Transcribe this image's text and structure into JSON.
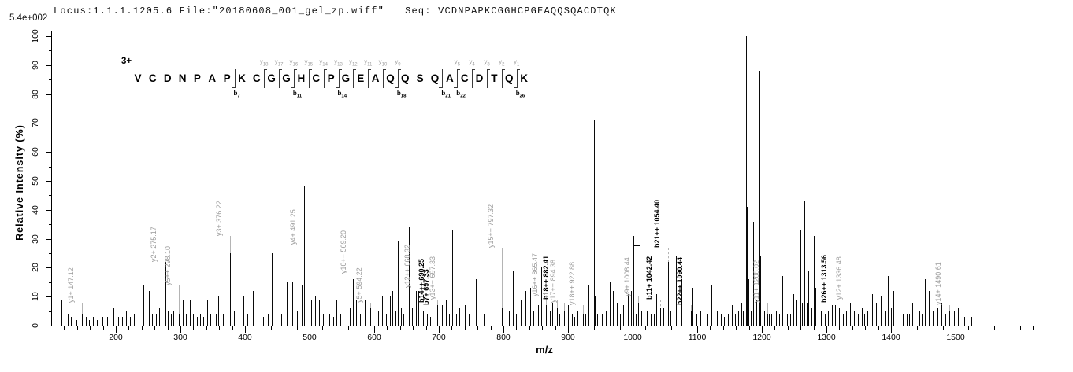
{
  "header": {
    "locus_file": "Locus:1.1.1.1205.6 File:\"20180608_001_gel_zp.wiff\"",
    "seq": "Seq: VCDNPAPKCGGHCPGEAQQSQACDTQK"
  },
  "chart_data": {
    "type": "bar",
    "subtype": "ms2-fragment-spectrum",
    "title": "Locus:1.1.1.1205.6 File:\"20180608_001_gel_zp.wiff\" Seq: VCDNPAPKCGGHCPGEAQQSQACDTQK",
    "max_intensity_label": "5.4e+002",
    "xlabel": "m/z",
    "ylabel": "Relative  Intensity (%)",
    "xlim": [
      100,
      1625
    ],
    "ylim": [
      0,
      100
    ],
    "x_major_ticks": [
      200,
      300,
      400,
      500,
      600,
      700,
      800,
      900,
      1000,
      1100,
      1200,
      1300,
      1400,
      1500
    ],
    "x_minor_tick_step": 20,
    "y_tick_labels": [
      0,
      10,
      20,
      30,
      40,
      50,
      60,
      70,
      80,
      90,
      100
    ],
    "y_minor_tick_step": 5,
    "grid": false,
    "peak_color": "#0a0a0a",
    "y_ion_label_color": "#9b9b9b",
    "b_ion_label_color": "#000000",
    "sequence": {
      "charge": "3+",
      "residues": [
        "V",
        "C",
        "D",
        "N",
        "P",
        "A",
        "P",
        "K",
        "C",
        "G",
        "G",
        "H",
        "C",
        "P",
        "G",
        "E",
        "A",
        "Q",
        "Q",
        "S",
        "Q",
        "A",
        "C",
        "D",
        "T",
        "Q",
        "K"
      ],
      "cleavages": [
        {
          "after": 7,
          "b": "b7"
        },
        {
          "after": 9,
          "y": "y18"
        },
        {
          "after": 10,
          "y": "y17"
        },
        {
          "after": 11,
          "y": "y16",
          "b": "b11"
        },
        {
          "after": 12,
          "y": "y15"
        },
        {
          "after": 13,
          "y": "y14"
        },
        {
          "after": 14,
          "y": "y13",
          "b": "b14"
        },
        {
          "after": 15,
          "y": "y12"
        },
        {
          "after": 16,
          "y": "y11"
        },
        {
          "after": 17,
          "y": "y10"
        },
        {
          "after": 18,
          "y": "y9",
          "b": "b18"
        },
        {
          "after": 21,
          "b": "b21"
        },
        {
          "after": 22,
          "y": "y5",
          "b": "b22"
        },
        {
          "after": 23,
          "y": "y4"
        },
        {
          "after": 24,
          "y": "y3"
        },
        {
          "after": 25,
          "y": "y2"
        },
        {
          "after": 26,
          "y": "y1",
          "b": "b26"
        }
      ]
    },
    "precursor_marker": {
      "mz": 1001.5,
      "intensity": 28
    },
    "labeled_peaks": [
      {
        "mz": 147.12,
        "intensity": 4,
        "label": "y1+ 147.12",
        "ion": "y",
        "label_y": 8
      },
      {
        "mz": 275.17,
        "intensity": 34,
        "label": "y2+ 275.17",
        "ion": "y",
        "label_y": 22,
        "dash": true
      },
      {
        "mz": 298.1,
        "intensity": 4,
        "label": "y5++ 298.10",
        "ion": "y",
        "label_y": 14
      },
      {
        "mz": 376.22,
        "intensity": 25,
        "label": "y3+ 376.22",
        "ion": "y",
        "label_y": 31
      },
      {
        "mz": 491.25,
        "intensity": 48,
        "label": "y4+ 491.25",
        "ion": "y",
        "label_y": 28
      },
      {
        "mz": 569.2,
        "intensity": 8,
        "label": "y10++ 569.20",
        "ion": "y",
        "label_y": 18
      },
      {
        "mz": 594.22,
        "intensity": 6,
        "label": "y5+ 594.22",
        "ion": "y",
        "label_y": 8
      },
      {
        "mz": 668.32,
        "intensity": 12,
        "label": "y12++ 668.32",
        "ion": "y",
        "label_y": 13
      },
      {
        "mz": 690.25,
        "intensity": 6,
        "label": "b14++ 690.25",
        "ion": "b",
        "label_y": 8
      },
      {
        "mz": 697.33,
        "intensity": 7,
        "label": "b7+ 697.33",
        "ion": "b",
        "label_y": 7
      },
      {
        "mz": 697.33,
        "intensity": 7,
        "label": "y13++ 697.33",
        "ion": "y",
        "label_y": 9,
        "label_x_offset": 8
      },
      {
        "mz": 797.32,
        "intensity": 6,
        "label": "y15++ 797.32",
        "ion": "y",
        "label_y": 27
      },
      {
        "mz": 865.47,
        "intensity": 7,
        "label": "y16++ 865.47",
        "ion": "y",
        "label_y": 10
      },
      {
        "mz": 882.41,
        "intensity": 6,
        "label": "b18++ 882.41",
        "ion": "b",
        "label_y": 9
      },
      {
        "mz": 894.38,
        "intensity": 5,
        "label": "y17++ 894.38",
        "ion": "y",
        "label_y": 8
      },
      {
        "mz": 922.88,
        "intensity": 4,
        "label": "y18++ 922.88",
        "ion": "y",
        "label_y": 7
      },
      {
        "mz": 1008.44,
        "intensity": 8,
        "label": "y9+ 1008.44",
        "ion": "y",
        "label_y": 10
      },
      {
        "mz": 1042.42,
        "intensity": 6,
        "label": "b11+ 1042.42",
        "ion": "b",
        "label_y": 9,
        "dash": true
      },
      {
        "mz": 1054.4,
        "intensity": 22,
        "label": "b21++ 1054.40",
        "ion": "b",
        "label_y": 27,
        "dash": true
      },
      {
        "mz": 1090.44,
        "intensity": 5,
        "label": "b22++ 1090.44",
        "ion": "b",
        "label_y": 7
      },
      {
        "mz": 1208.02,
        "intensity": 4,
        "label": "y11+ 1208.02",
        "ion": "y",
        "label_y": 8
      },
      {
        "mz": 1313.56,
        "intensity": 7,
        "label": "b26++ 1313.56",
        "ion": "b",
        "label_y": 8
      },
      {
        "mz": 1336.48,
        "intensity": 8,
        "label": "y12+ 1336.48",
        "ion": "y",
        "label_y": 9
      },
      {
        "mz": 1490.61,
        "intensity": 5,
        "label": "y14+ 1490.61",
        "ion": "y",
        "label_y": 7
      }
    ],
    "peaks": [
      [
        116,
        9
      ],
      [
        121,
        3
      ],
      [
        125,
        4
      ],
      [
        131,
        3
      ],
      [
        139,
        2
      ],
      [
        153,
        3
      ],
      [
        158,
        2
      ],
      [
        164,
        3
      ],
      [
        171,
        2
      ],
      [
        179,
        3
      ],
      [
        187,
        3
      ],
      [
        196,
        6
      ],
      [
        203,
        3
      ],
      [
        210,
        3
      ],
      [
        216,
        5
      ],
      [
        222,
        3
      ],
      [
        228,
        4
      ],
      [
        235,
        5
      ],
      [
        243,
        14
      ],
      [
        247,
        5
      ],
      [
        251,
        12
      ],
      [
        256,
        4
      ],
      [
        262,
        4
      ],
      [
        267,
        6
      ],
      [
        271,
        6
      ],
      [
        277,
        22
      ],
      [
        281,
        5
      ],
      [
        285,
        4
      ],
      [
        289,
        5
      ],
      [
        293,
        13
      ],
      [
        304,
        9
      ],
      [
        309,
        4
      ],
      [
        314,
        9
      ],
      [
        320,
        4
      ],
      [
        325,
        3
      ],
      [
        330,
        4
      ],
      [
        335,
        3
      ],
      [
        341,
        9
      ],
      [
        346,
        4
      ],
      [
        350,
        6
      ],
      [
        355,
        4
      ],
      [
        359,
        10
      ],
      [
        366,
        4
      ],
      [
        373,
        3
      ],
      [
        383,
        5
      ],
      [
        390,
        37
      ],
      [
        397,
        10
      ],
      [
        404,
        4
      ],
      [
        412,
        12
      ],
      [
        420,
        4
      ],
      [
        428,
        3
      ],
      [
        435,
        4
      ],
      [
        441,
        25
      ],
      [
        449,
        10
      ],
      [
        456,
        4
      ],
      [
        464,
        15
      ],
      [
        473,
        15
      ],
      [
        481,
        5
      ],
      [
        488,
        14
      ],
      [
        494,
        24
      ],
      [
        502,
        9
      ],
      [
        509,
        10
      ],
      [
        515,
        9
      ],
      [
        521,
        4
      ],
      [
        530,
        4
      ],
      [
        536,
        3
      ],
      [
        542,
        9
      ],
      [
        548,
        4
      ],
      [
        557,
        14
      ],
      [
        562,
        6
      ],
      [
        567,
        16
      ],
      [
        572,
        9
      ],
      [
        578,
        4
      ],
      [
        585,
        9
      ],
      [
        591,
        4
      ],
      [
        597,
        3
      ],
      [
        606,
        5
      ],
      [
        612,
        10
      ],
      [
        618,
        4
      ],
      [
        624,
        10
      ],
      [
        628,
        12
      ],
      [
        633,
        5
      ],
      [
        637,
        29
      ],
      [
        641,
        6
      ],
      [
        645,
        4
      ],
      [
        650,
        40
      ],
      [
        653,
        34
      ],
      [
        658,
        6
      ],
      [
        665,
        12
      ],
      [
        672,
        4
      ],
      [
        675,
        5
      ],
      [
        682,
        4
      ],
      [
        687,
        3
      ],
      [
        705,
        7
      ],
      [
        711,
        9
      ],
      [
        716,
        4
      ],
      [
        721,
        33
      ],
      [
        727,
        4
      ],
      [
        732,
        6
      ],
      [
        740,
        7
      ],
      [
        746,
        4
      ],
      [
        752,
        9
      ],
      [
        757,
        16
      ],
      [
        764,
        5
      ],
      [
        770,
        4
      ],
      [
        776,
        6
      ],
      [
        782,
        4
      ],
      [
        788,
        5
      ],
      [
        793,
        4
      ],
      [
        805,
        9
      ],
      [
        808,
        5
      ],
      [
        814,
        19
      ],
      [
        820,
        4
      ],
      [
        827,
        9
      ],
      [
        834,
        12
      ],
      [
        841,
        13
      ],
      [
        846,
        5
      ],
      [
        850,
        13
      ],
      [
        854,
        7
      ],
      [
        858,
        20
      ],
      [
        862,
        8
      ],
      [
        872,
        5
      ],
      [
        876,
        8
      ],
      [
        879,
        7
      ],
      [
        886,
        4
      ],
      [
        890,
        5
      ],
      [
        896,
        7
      ],
      [
        900,
        7
      ],
      [
        906,
        4
      ],
      [
        910,
        3
      ],
      [
        915,
        5
      ],
      [
        919,
        4
      ],
      [
        927,
        4
      ],
      [
        932,
        14
      ],
      [
        936,
        5
      ],
      [
        939.6,
        71
      ],
      [
        941,
        10
      ],
      [
        945,
        4
      ],
      [
        952,
        4
      ],
      [
        958,
        5
      ],
      [
        965,
        15
      ],
      [
        969,
        12
      ],
      [
        976,
        8
      ],
      [
        981,
        4
      ],
      [
        985,
        7
      ],
      [
        993,
        11
      ],
      [
        997,
        12
      ],
      [
        1001.5,
        31
      ],
      [
        1005,
        4
      ],
      [
        1013,
        5
      ],
      [
        1017,
        13
      ],
      [
        1022,
        5
      ],
      [
        1028,
        4
      ],
      [
        1033,
        4
      ],
      [
        1037,
        11
      ],
      [
        1047,
        6
      ],
      [
        1059,
        5
      ],
      [
        1063,
        25
      ],
      [
        1067,
        24
      ],
      [
        1075,
        16
      ],
      [
        1080,
        15
      ],
      [
        1086,
        5
      ],
      [
        1093,
        13
      ],
      [
        1099,
        4
      ],
      [
        1105,
        5
      ],
      [
        1110,
        4
      ],
      [
        1116,
        4
      ],
      [
        1122,
        14
      ],
      [
        1127,
        16
      ],
      [
        1131,
        5
      ],
      [
        1136,
        4
      ],
      [
        1141,
        3
      ],
      [
        1147,
        4
      ],
      [
        1153,
        7
      ],
      [
        1158,
        4
      ],
      [
        1163,
        5
      ],
      [
        1168,
        8
      ],
      [
        1171,
        5
      ],
      [
        1175,
        100
      ],
      [
        1176.5,
        41
      ],
      [
        1179,
        16
      ],
      [
        1183,
        5
      ],
      [
        1187,
        36
      ],
      [
        1191,
        9
      ],
      [
        1196,
        88
      ],
      [
        1198,
        24
      ],
      [
        1203,
        5
      ],
      [
        1211,
        4
      ],
      [
        1215,
        4
      ],
      [
        1222,
        5
      ],
      [
        1227,
        4
      ],
      [
        1232,
        17
      ],
      [
        1239,
        4
      ],
      [
        1244,
        4
      ],
      [
        1249,
        11
      ],
      [
        1253,
        9
      ],
      [
        1258,
        48
      ],
      [
        1260,
        33
      ],
      [
        1262,
        8
      ],
      [
        1266,
        43
      ],
      [
        1270,
        8
      ],
      [
        1272,
        19
      ],
      [
        1277,
        6
      ],
      [
        1280,
        31
      ],
      [
        1283,
        13
      ],
      [
        1288,
        4
      ],
      [
        1292,
        5
      ],
      [
        1298,
        4
      ],
      [
        1302,
        5
      ],
      [
        1308,
        7
      ],
      [
        1311,
        6
      ],
      [
        1319,
        6
      ],
      [
        1325,
        4
      ],
      [
        1330,
        5
      ],
      [
        1343,
        5
      ],
      [
        1349,
        4
      ],
      [
        1355,
        6
      ],
      [
        1359,
        4
      ],
      [
        1363,
        5
      ],
      [
        1371,
        11
      ],
      [
        1377,
        8
      ],
      [
        1384,
        10
      ],
      [
        1390,
        5
      ],
      [
        1395,
        17
      ],
      [
        1400,
        6
      ],
      [
        1404,
        12
      ],
      [
        1408,
        8
      ],
      [
        1413,
        5
      ],
      [
        1418,
        4
      ],
      [
        1424,
        4
      ],
      [
        1428,
        4
      ],
      [
        1433,
        8
      ],
      [
        1437,
        6
      ],
      [
        1444,
        5
      ],
      [
        1448,
        4
      ],
      [
        1452,
        16
      ],
      [
        1458,
        12
      ],
      [
        1464,
        5
      ],
      [
        1472,
        6
      ],
      [
        1478,
        8
      ],
      [
        1484,
        4
      ],
      [
        1497,
        5
      ],
      [
        1504,
        6
      ],
      [
        1513,
        3
      ],
      [
        1524,
        3
      ],
      [
        1540,
        2
      ]
    ]
  }
}
